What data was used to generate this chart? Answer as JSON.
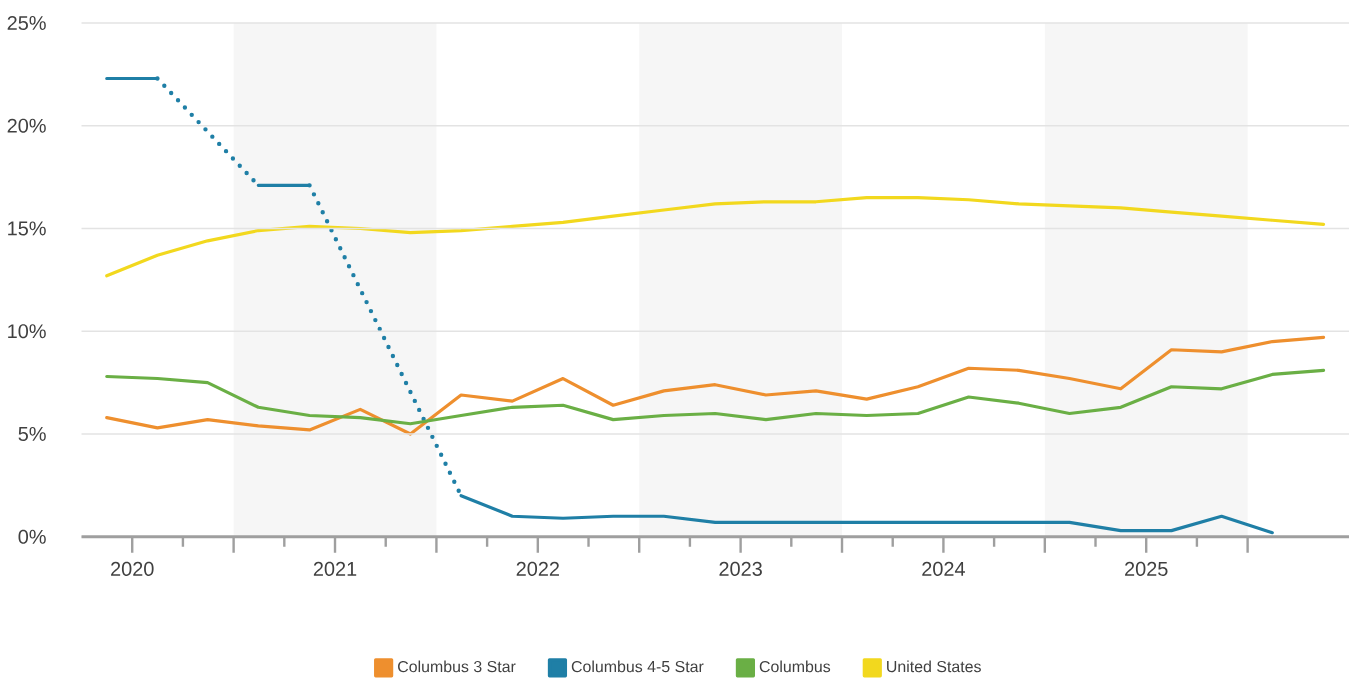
{
  "chart_data": {
    "type": "line",
    "x": [
      "2020-05-16",
      "2020-08-16",
      "2020-11-15",
      "2021-02-15",
      "2021-05-16",
      "2021-08-16",
      "2021-11-15",
      "2022-02-15",
      "2022-05-16",
      "2022-08-16",
      "2022-11-15",
      "2023-02-15",
      "2023-05-16",
      "2023-08-16",
      "2023-11-15",
      "2024-02-15",
      "2024-05-16",
      "2024-08-16",
      "2024-11-15",
      "2025-02-15",
      "2025-05-16",
      "2025-08-16",
      "2025-11-15",
      "2026-02-15",
      "2026-05-16"
    ],
    "series": [
      {
        "name": "Columbus  3 Star",
        "color": "#ee8f2e",
        "values": [
          5.8,
          5.3,
          5.7,
          5.4,
          5.2,
          6.2,
          5.0,
          6.9,
          6.6,
          7.7,
          6.4,
          7.1,
          7.4,
          6.9,
          7.1,
          6.7,
          7.3,
          8.2,
          8.1,
          7.7,
          7.2,
          9.1,
          9.0,
          9.5,
          9.7
        ]
      },
      {
        "name": "Columbus  4-5 Star",
        "color": "#1f7fa6",
        "values": [
          22.3,
          22.3,
          null,
          17.1,
          17.1,
          null,
          null,
          2.0,
          1.0,
          0.9,
          1.0,
          1.0,
          0.7,
          0.7,
          0.7,
          0.7,
          0.7,
          0.7,
          0.7,
          0.7,
          0.3,
          0.3,
          1.0,
          0.2,
          null
        ]
      },
      {
        "name": "Columbus",
        "color": "#6aaf45",
        "values": [
          7.8,
          7.7,
          7.5,
          6.3,
          5.9,
          5.8,
          5.5,
          5.9,
          6.3,
          6.4,
          5.7,
          5.9,
          6.0,
          5.7,
          6.0,
          5.9,
          6.0,
          6.8,
          6.5,
          6.0,
          6.3,
          7.3,
          7.2,
          7.9,
          8.1
        ]
      },
      {
        "name": "United States",
        "color": "#f2d81e",
        "values": [
          12.7,
          13.7,
          14.4,
          14.9,
          15.1,
          15.0,
          14.8,
          14.9,
          15.1,
          15.3,
          15.6,
          15.9,
          16.2,
          16.3,
          16.3,
          16.5,
          16.5,
          16.4,
          16.2,
          16.1,
          16.0,
          15.8,
          15.6,
          15.4,
          15.2
        ]
      }
    ],
    "xlim": [
      "2020-04",
      "2026-07"
    ],
    "xticks": [
      {
        "value": "2020-07",
        "label": "2020"
      },
      {
        "value": "2021",
        "label": null
      },
      {
        "value": "2021-07",
        "label": "2021"
      },
      {
        "value": "2022",
        "label": null
      },
      {
        "value": "2022-07",
        "label": "2022"
      },
      {
        "value": "2023",
        "label": null
      },
      {
        "value": "2023-07",
        "label": "2023"
      },
      {
        "value": "2024",
        "label": null
      },
      {
        "value": "2024-07",
        "label": "2024"
      },
      {
        "value": "2025",
        "label": null
      },
      {
        "value": "2025-07",
        "label": "2025"
      },
      {
        "value": "2026",
        "label": null
      }
    ],
    "ylim": [
      0,
      25
    ],
    "yticks": [
      {
        "value": 0,
        "label": "0%"
      },
      {
        "value": 5,
        "label": "5%"
      },
      {
        "value": 10,
        "label": "10%"
      },
      {
        "value": 15,
        "label": "15%"
      },
      {
        "value": 20,
        "label": "20%"
      },
      {
        "value": 25,
        "label": "25%"
      }
    ],
    "bands": [
      {
        "axis": "x",
        "from": "2021",
        "to": "2022",
        "color": "#f6f6f6"
      },
      {
        "axis": "x",
        "from": "2023",
        "to": "2024",
        "color": "#f6f6f6"
      },
      {
        "axis": "x",
        "from": "2025",
        "to": "2026",
        "color": "#f6f6f6"
      }
    ],
    "grid": "y",
    "legend": "bottom"
  }
}
